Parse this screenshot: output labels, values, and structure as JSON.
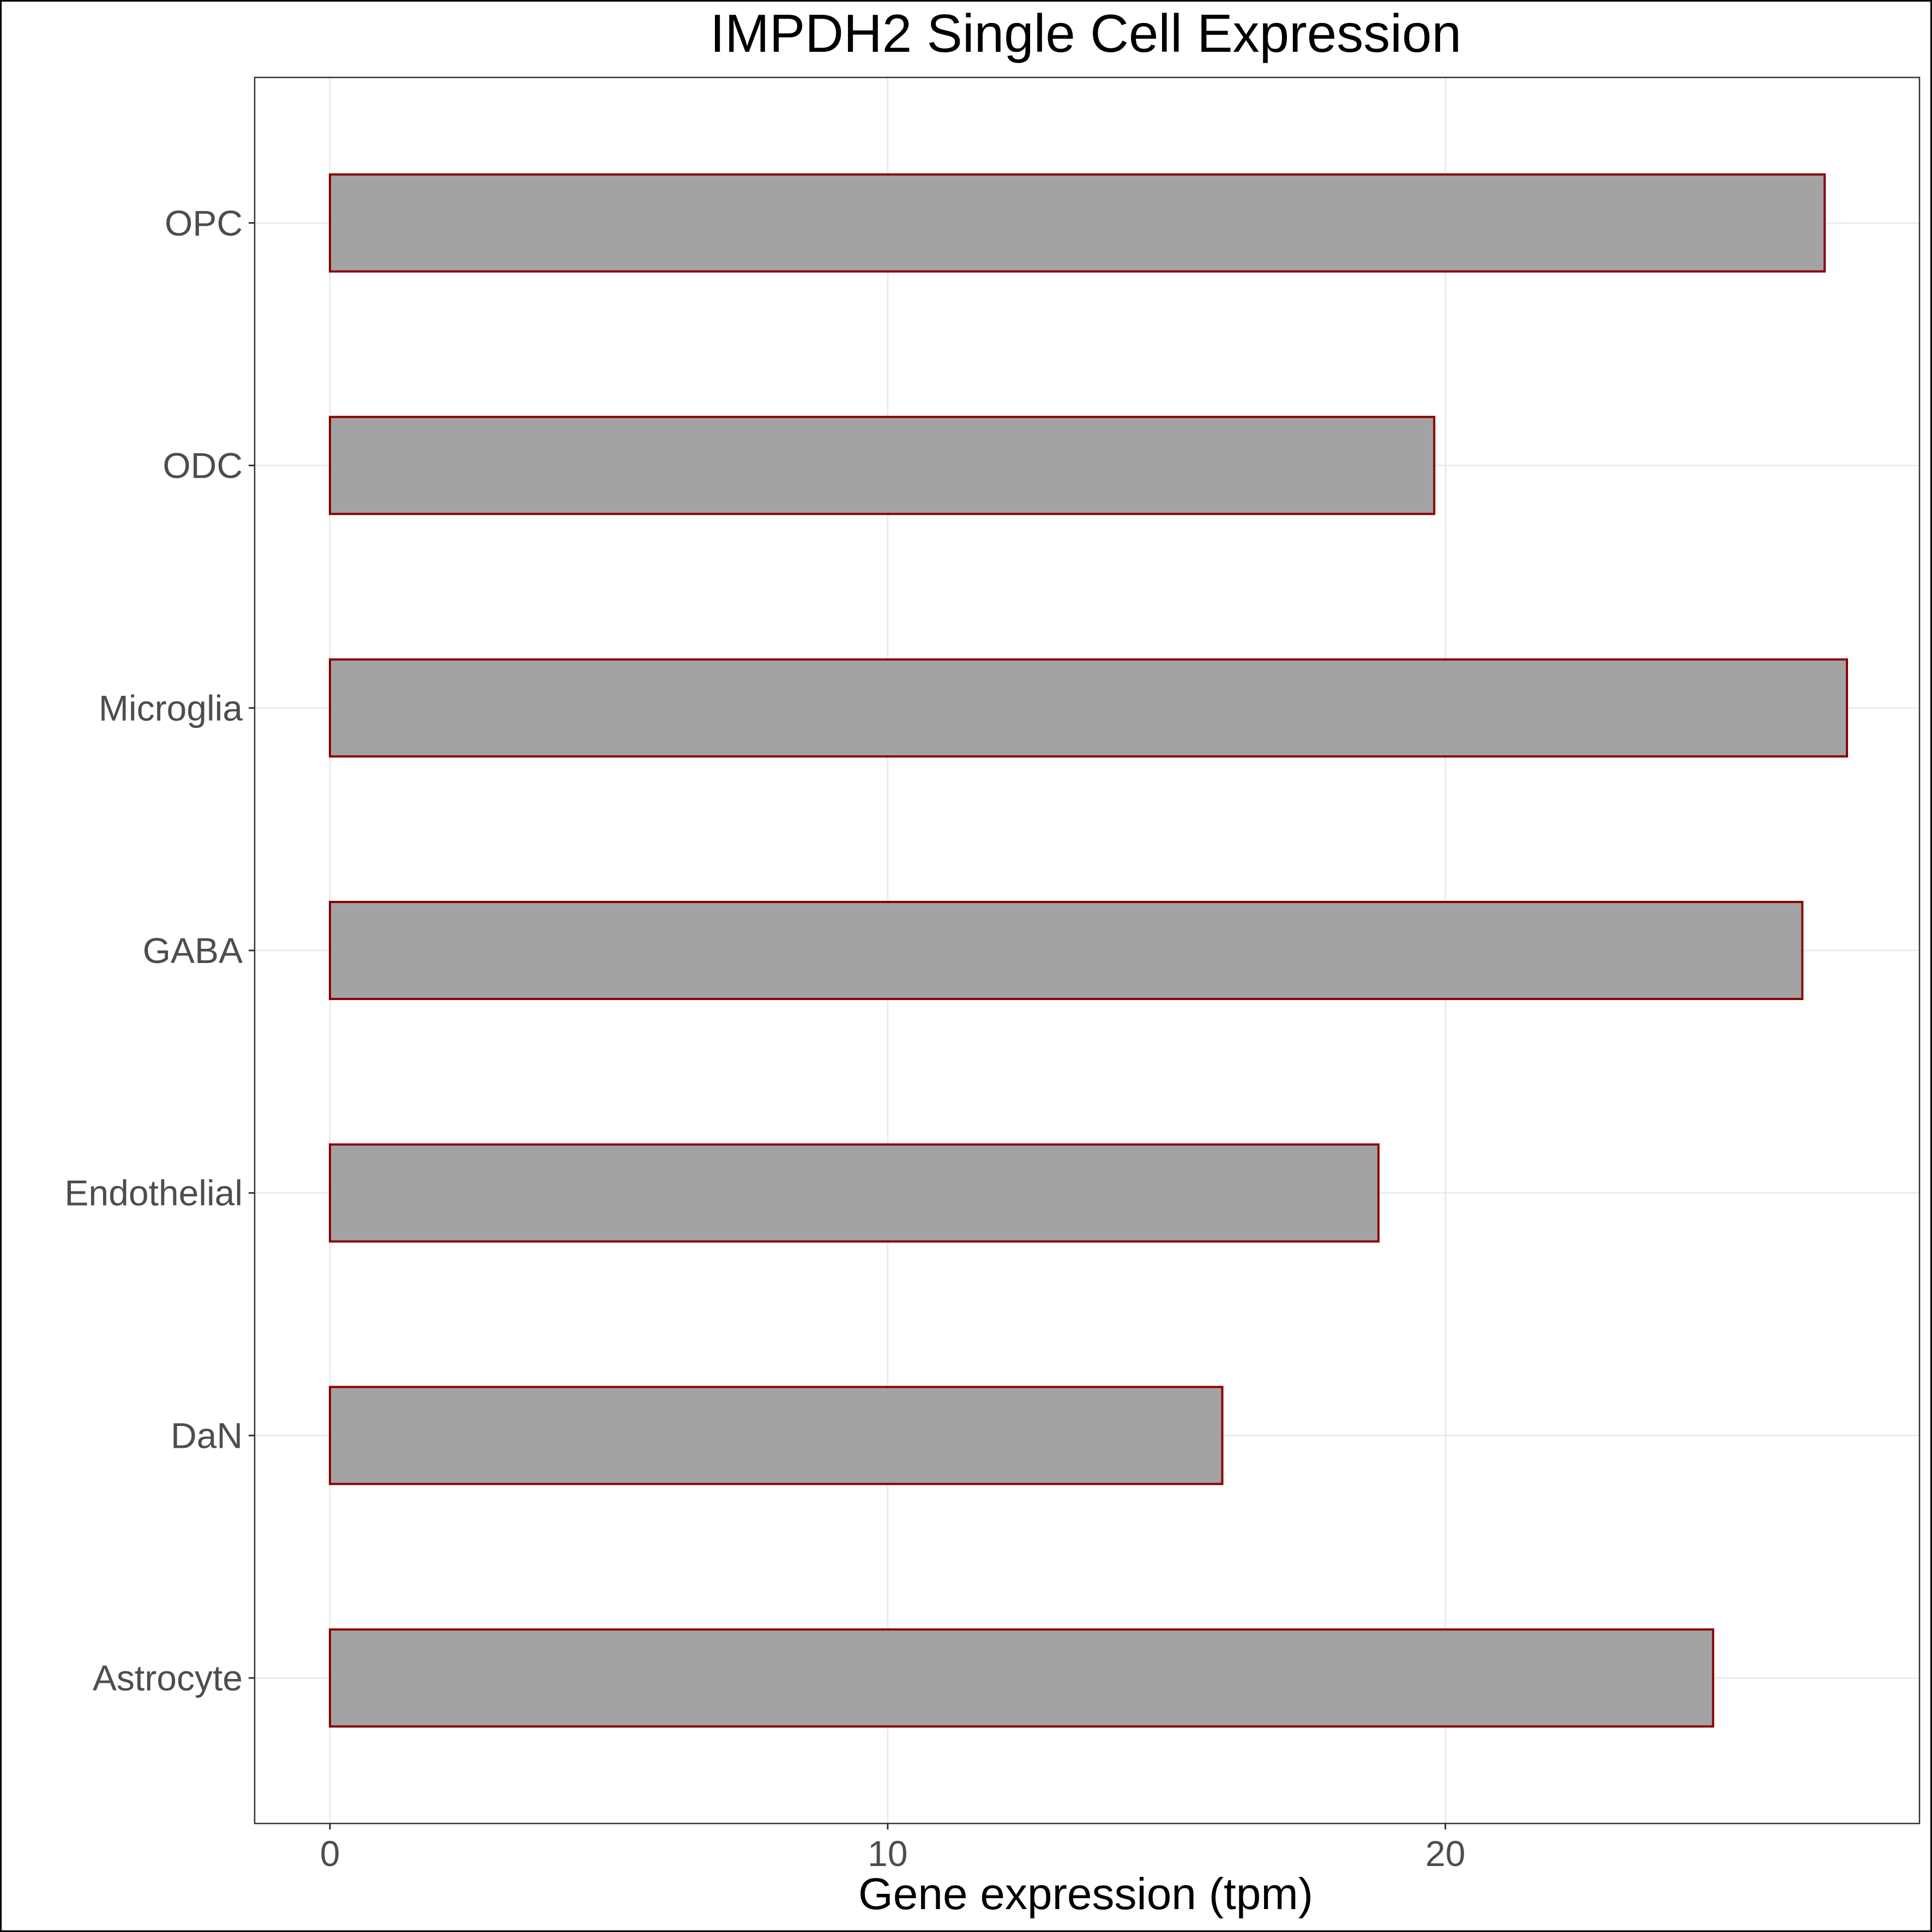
{
  "chart_data": {
    "type": "bar",
    "orientation": "horizontal",
    "title": "IMPDH2 Single Cell Expression",
    "xlabel": "Gene expression (tpm)",
    "ylabel": "",
    "categories": [
      "Astrocyte",
      "DaN",
      "Endothelial",
      "GABA",
      "Microglia",
      "ODC",
      "OPC"
    ],
    "values": [
      24.8,
      16.0,
      18.8,
      26.4,
      27.2,
      19.8,
      26.8
    ],
    "xlim": [
      -1.35,
      28.5
    ],
    "xticks": [
      0,
      10,
      20
    ],
    "grid": true,
    "bar_fill": "#a3a3a3",
    "bar_outline": "#8b0000",
    "grid_color": "#ebebeb",
    "panel_border": "#333333"
  }
}
